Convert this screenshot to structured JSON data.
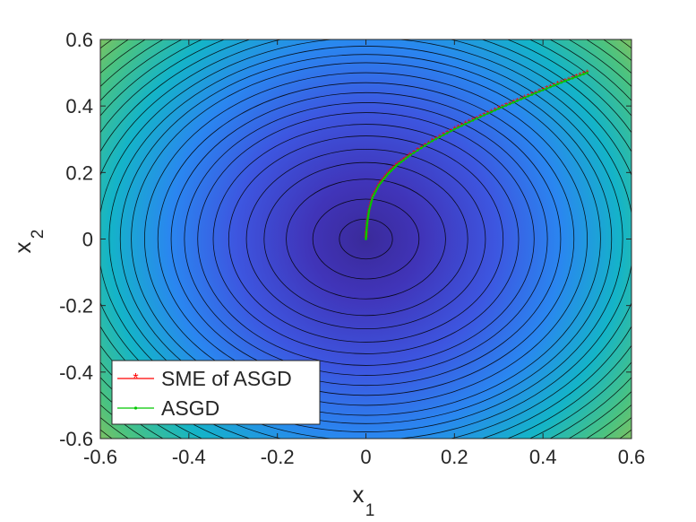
{
  "chart_data": {
    "type": "line",
    "xlabel": "x",
    "xlabel_sub": "1",
    "ylabel": "x",
    "ylabel_sub": "2",
    "xlim": [
      -0.6,
      0.6
    ],
    "ylim": [
      -0.6,
      0.6
    ],
    "xticks": [
      "-0.6",
      "-0.4",
      "-0.2",
      "0",
      "0.2",
      "0.4",
      "0.6"
    ],
    "yticks": [
      "-0.6",
      "-0.4",
      "-0.2",
      "0",
      "0.2",
      "0.4",
      "0.6"
    ],
    "xtick_values": [
      -0.6,
      -0.4,
      -0.2,
      0,
      0.2,
      0.4,
      0.6
    ],
    "ytick_values": [
      -0.6,
      -0.4,
      -0.2,
      0,
      0.2,
      0.4,
      0.6
    ],
    "background": "filled contour of radially symmetric function centered at origin",
    "contour_levels_radii": [
      0.06,
      0.12,
      0.18,
      0.23,
      0.27,
      0.31,
      0.345,
      0.38,
      0.41,
      0.44,
      0.47,
      0.5,
      0.53,
      0.555,
      0.58,
      0.605,
      0.63,
      0.655,
      0.68,
      0.705,
      0.73,
      0.755,
      0.78,
      0.805,
      0.83
    ],
    "legend_position": "bottom-left",
    "series": [
      {
        "name": "SME of ASGD",
        "color": "#ff0000",
        "marker": "asterisk",
        "x": [
          0.5,
          0.45,
          0.4,
          0.35,
          0.3,
          0.25,
          0.2,
          0.15,
          0.1,
          0.07,
          0.05,
          0.03,
          0.015,
          0.007,
          0.003,
          0.001,
          0.0
        ],
        "y": [
          0.5,
          0.475,
          0.448,
          0.42,
          0.392,
          0.362,
          0.33,
          0.295,
          0.252,
          0.222,
          0.196,
          0.163,
          0.125,
          0.085,
          0.05,
          0.02,
          0.0
        ]
      },
      {
        "name": "ASGD",
        "color": "#00c800",
        "marker": "dot",
        "x": [
          0.5,
          0.45,
          0.4,
          0.35,
          0.3,
          0.25,
          0.2,
          0.15,
          0.1,
          0.07,
          0.05,
          0.03,
          0.015,
          0.007,
          0.003,
          0.001,
          0.0
        ],
        "y": [
          0.5,
          0.475,
          0.448,
          0.42,
          0.392,
          0.362,
          0.33,
          0.295,
          0.252,
          0.222,
          0.196,
          0.163,
          0.125,
          0.085,
          0.05,
          0.02,
          0.0
        ]
      }
    ]
  }
}
